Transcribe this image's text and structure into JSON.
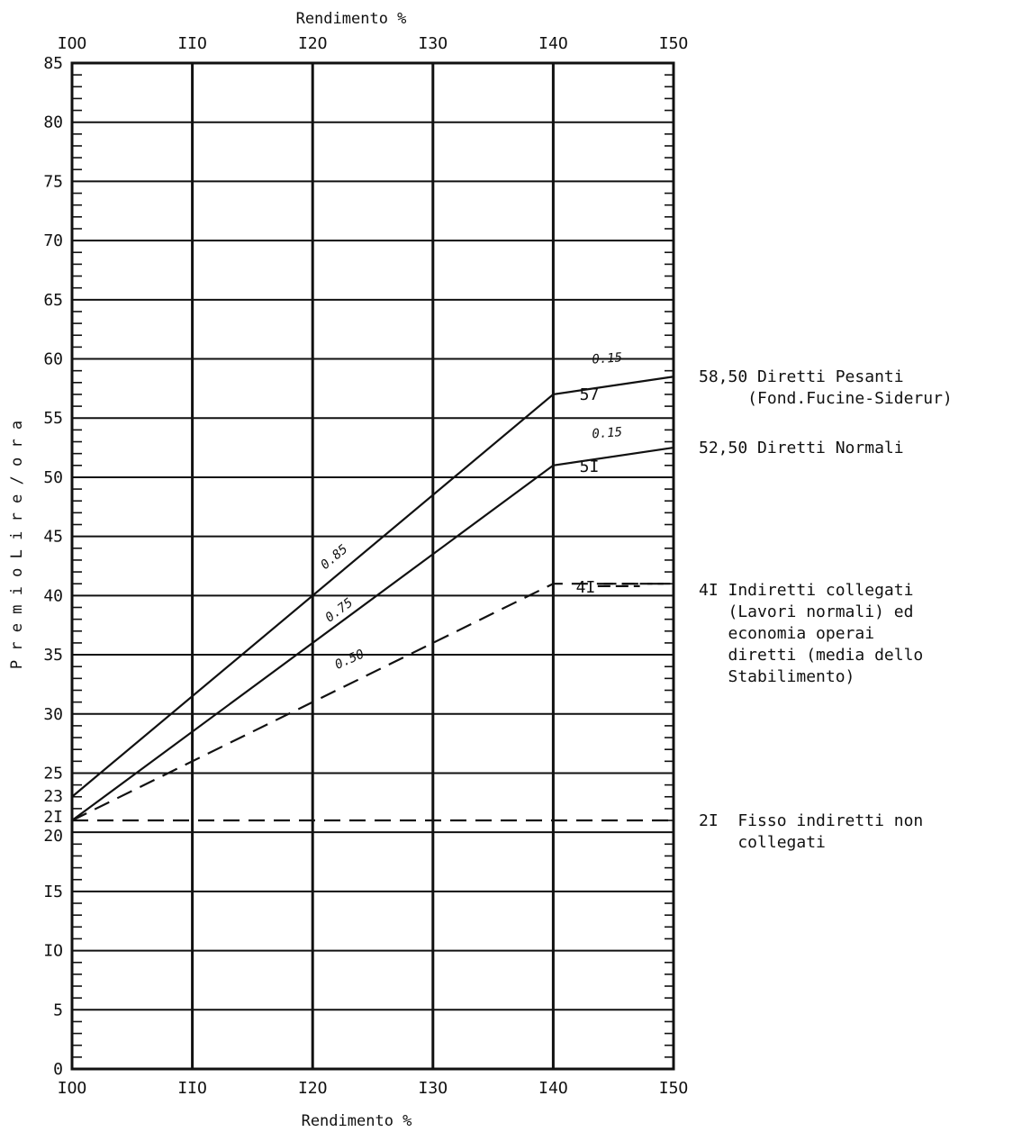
{
  "chart_data": {
    "type": "line",
    "title": "",
    "xlabel_top": "Rendimento %",
    "xlabel_bottom": "Rendimento %",
    "ylabel": "P r e m i o   L i r e / o r a",
    "xlim": [
      100,
      150
    ],
    "ylim": [
      0,
      85
    ],
    "grid": true,
    "x_ticks": [
      {
        "value": 100,
        "label": "IOO"
      },
      {
        "value": 110,
        "label": "IIO"
      },
      {
        "value": 120,
        "label": "I2O"
      },
      {
        "value": 130,
        "label": "I3O"
      },
      {
        "value": 140,
        "label": "I4O"
      },
      {
        "value": 150,
        "label": "I5O"
      }
    ],
    "y_ticks": [
      {
        "value": 0,
        "label": "0"
      },
      {
        "value": 5,
        "label": "5"
      },
      {
        "value": 10,
        "label": "IO"
      },
      {
        "value": 15,
        "label": "I5"
      },
      {
        "value": 20,
        "label": "20"
      },
      {
        "value": 21,
        "label": "2I"
      },
      {
        "value": 23,
        "label": "23"
      },
      {
        "value": 25,
        "label": "25"
      },
      {
        "value": 30,
        "label": "30"
      },
      {
        "value": 35,
        "label": "35"
      },
      {
        "value": 40,
        "label": "40"
      },
      {
        "value": 45,
        "label": "45"
      },
      {
        "value": 50,
        "label": "50"
      },
      {
        "value": 55,
        "label": "55"
      },
      {
        "value": 60,
        "label": "60"
      },
      {
        "value": 65,
        "label": "65"
      },
      {
        "value": 70,
        "label": "70"
      },
      {
        "value": 75,
        "label": "75"
      },
      {
        "value": 80,
        "label": "80"
      },
      {
        "value": 85,
        "label": "85"
      }
    ],
    "series": [
      {
        "name": "Diretti Pesanti (Fond.Fucine-Siderur)",
        "style": "solid",
        "x": [
          100,
          140,
          150
        ],
        "y": [
          23,
          57,
          58.5
        ],
        "end_label": "57",
        "end_label_at": [
          143,
          57
        ],
        "slopes": [
          {
            "text": "0.85",
            "x": 122,
            "y": 43,
            "angle": -40
          },
          {
            "text": "0.15",
            "x": 144.5,
            "y": 59.7,
            "angle": -4
          }
        ],
        "right_label": [
          "58,50 Diretti Pesanti",
          "     (Fond.Fucine-Siderur)"
        ],
        "right_label_y": 58.5
      },
      {
        "name": "Diretti Normali",
        "style": "solid",
        "x": [
          100,
          140,
          150
        ],
        "y": [
          21,
          51,
          52.5
        ],
        "end_label": "5I",
        "end_label_at": [
          143,
          50.9
        ],
        "slopes": [
          {
            "text": "0.75",
            "x": 122.4,
            "y": 38.5,
            "angle": -37
          },
          {
            "text": "0.15",
            "x": 144.5,
            "y": 53.4,
            "angle": -4
          }
        ],
        "right_label": [
          "52,50 Diretti Normali"
        ],
        "right_label_y": 52.5
      },
      {
        "name": "Indiretti collegati",
        "style": "dashed",
        "x": [
          100,
          140,
          150
        ],
        "y": [
          21,
          41,
          41
        ],
        "end_label": "4I",
        "end_label_at": [
          142.7,
          40.7
        ],
        "slopes": [
          {
            "text": "0.50",
            "x": 123.2,
            "y": 34.3,
            "angle": -24
          }
        ],
        "right_label": [
          "4I Indiretti collegati",
          "   (Lavori normali) ed",
          "   economia operai",
          "   diretti (media dello",
          "   Stabilimento)"
        ],
        "right_label_y": 40.5
      },
      {
        "name": "Fisso indiretti non collegati",
        "style": "dashed",
        "x": [
          100,
          150
        ],
        "y": [
          21,
          21
        ],
        "right_label": [
          "2I  Fisso indiretti non",
          "    collegati"
        ],
        "right_label_y": 21
      }
    ]
  }
}
